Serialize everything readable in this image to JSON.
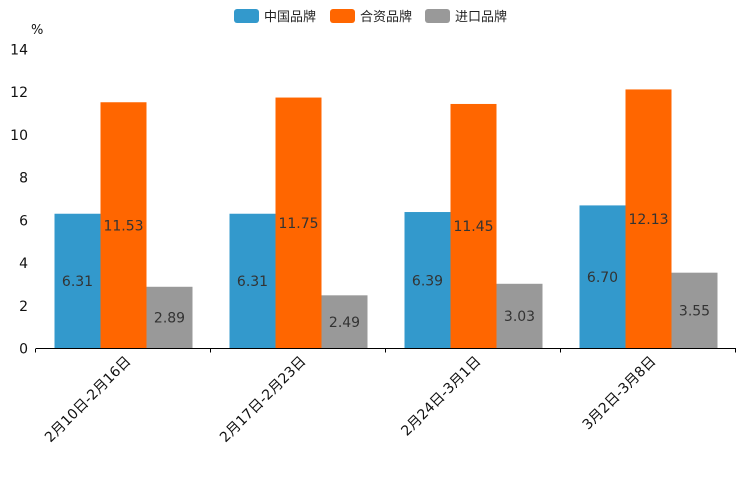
{
  "chart_data": {
    "type": "bar",
    "unit": "%",
    "categories": [
      "2月10日-2月16日",
      "2月17日-2月23日",
      "2月24日-3月1日",
      "3月2日-3月8日"
    ],
    "series": [
      {
        "name": "中国品牌",
        "color": "#3399cc",
        "values": [
          6.31,
          6.31,
          6.39,
          6.7
        ],
        "labels": [
          "6.31",
          "6.31",
          "6.39",
          "6.70"
        ]
      },
      {
        "name": "合资品牌",
        "color": "#ff6600",
        "values": [
          11.53,
          11.75,
          11.45,
          12.13
        ],
        "labels": [
          "11.53",
          "11.75",
          "11.45",
          "12.13"
        ]
      },
      {
        "name": "进口品牌",
        "color": "#999999",
        "values": [
          2.89,
          2.49,
          3.03,
          3.55
        ],
        "labels": [
          "2.89",
          "2.49",
          "3.03",
          "3.55"
        ]
      }
    ],
    "ylim": [
      0,
      14
    ],
    "yticks": [
      "0",
      "2",
      "4",
      "6",
      "8",
      "10",
      "12",
      "14"
    ],
    "legend": "top-center",
    "grid": false
  }
}
